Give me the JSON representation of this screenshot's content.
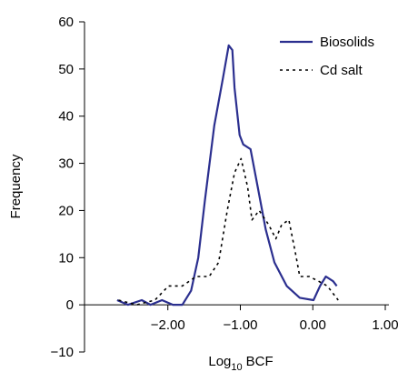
{
  "chart_data": {
    "type": "line",
    "x_label": {
      "base": "Log",
      "subscript": "10",
      "rest": "BCF"
    },
    "y_label": "Frequency",
    "xlim": [
      -3.15,
      1.05
    ],
    "ylim": [
      -10,
      60
    ],
    "xticks": [
      {
        "value": -2,
        "label": "−2.00"
      },
      {
        "value": -1,
        "label": "−1.00"
      },
      {
        "value": 0,
        "label": "0.00"
      },
      {
        "value": 1,
        "label": "1.00"
      }
    ],
    "yticks": [
      {
        "value": -10,
        "label": "−10"
      },
      0,
      10,
      20,
      30,
      40,
      50,
      60
    ],
    "legend": "top-right",
    "series": [
      {
        "name": "Biosolids",
        "color": "#2b2f8f",
        "dash": "solid",
        "x": [
          -2.7,
          -2.55,
          -2.36,
          -2.24,
          -2.08,
          -1.93,
          -1.8,
          -1.68,
          -1.58,
          -1.49,
          -1.36,
          -1.24,
          -1.16,
          -1.11,
          -1.08,
          -1.01,
          -0.96,
          -0.86,
          -0.76,
          -0.65,
          -0.53,
          -0.36,
          -0.18,
          0.01,
          0.1,
          0.18,
          0.28,
          0.33
        ],
        "values": [
          1,
          0,
          1,
          0,
          1,
          0,
          0,
          3,
          10,
          22,
          38,
          48,
          55,
          54,
          46,
          36,
          34,
          33,
          25,
          16,
          9,
          4,
          1.5,
          1,
          4,
          6,
          5,
          4
        ]
      },
      {
        "name": "Cd salt",
        "color": "#000000",
        "dash": "dotted",
        "x": [
          -2.68,
          -2.43,
          -2.18,
          -1.99,
          -1.8,
          -1.61,
          -1.43,
          -1.3,
          -1.18,
          -1.08,
          -0.99,
          -0.9,
          -0.84,
          -0.74,
          -0.61,
          -0.51,
          -0.43,
          -0.33,
          -0.24,
          -0.18,
          -0.05,
          0.08,
          0.2,
          0.35
        ],
        "values": [
          1,
          0,
          1,
          4,
          4,
          6,
          6,
          9,
          20,
          28,
          31,
          25,
          18,
          20,
          17,
          14,
          17,
          18,
          11,
          6,
          6,
          5,
          4,
          1
        ]
      }
    ]
  }
}
